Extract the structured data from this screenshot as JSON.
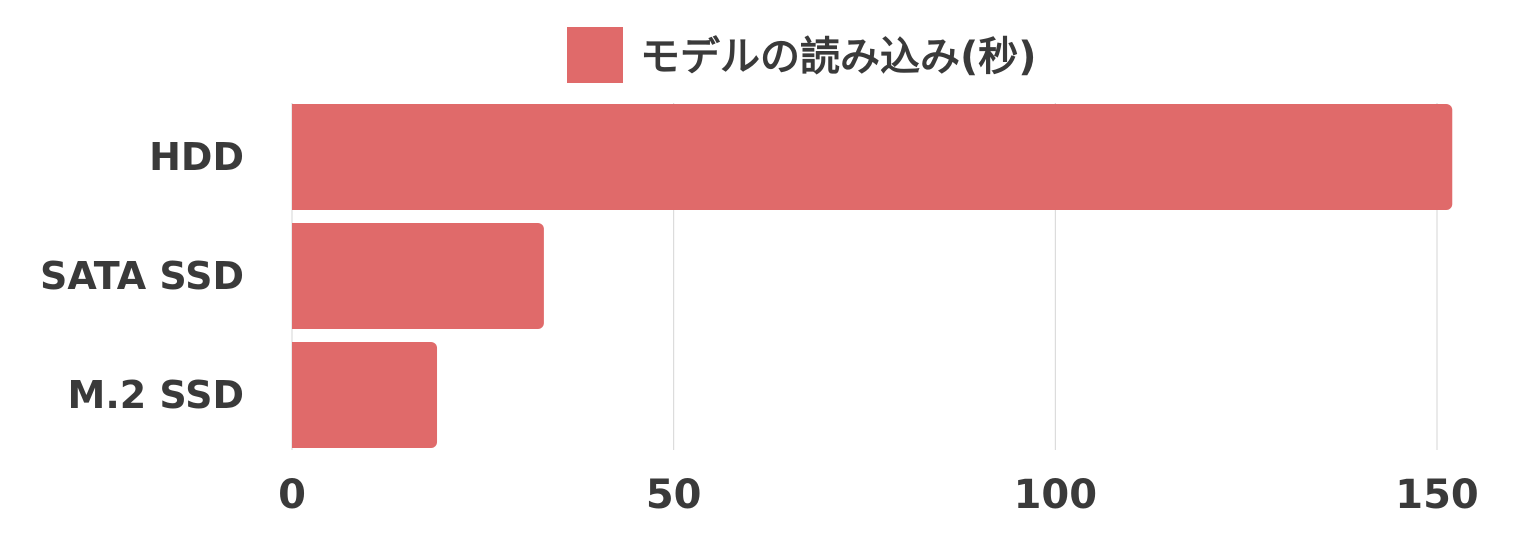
{
  "chart_data": {
    "type": "bar",
    "orientation": "horizontal",
    "categories": [
      "HDD",
      "SATA SSD",
      "M.2 SSD"
    ],
    "series": [
      {
        "name": "モデルの読み込み(秒)",
        "values": [
          152,
          33,
          19
        ],
        "color": "#e06a6a"
      }
    ],
    "xlim": [
      0,
      150
    ],
    "xticks": [
      0,
      50,
      100,
      150
    ],
    "xlabel": "",
    "ylabel": "",
    "grid": "vertical",
    "legend_position": "top-center"
  },
  "colors": {
    "bar": "#e06a6a",
    "text": "#3a3a3a",
    "grid": "#d5d5d5"
  }
}
